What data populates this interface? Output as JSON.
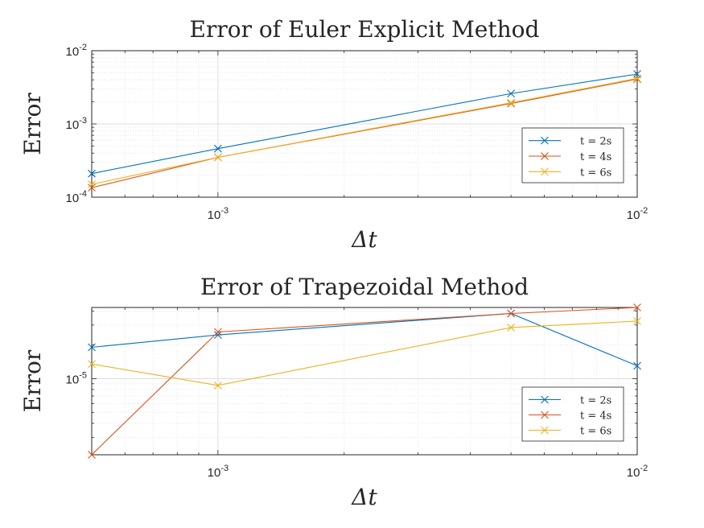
{
  "chart_data": [
    {
      "type": "line",
      "title": "Error of Euler Explicit Method",
      "xlabel": "Δt",
      "ylabel": "Error",
      "xscale": "log",
      "yscale": "log",
      "xlim": [
        0.0005,
        0.01
      ],
      "ylim": [
        0.0001,
        0.01
      ],
      "grid": true,
      "minor_grid": true,
      "legend_position": "lower-right",
      "x": [
        0.0005,
        0.001,
        0.005,
        0.01
      ],
      "x_ticks": [
        {
          "value": 0.001,
          "base": "10",
          "exp": "-3"
        },
        {
          "value": 0.01,
          "base": "10",
          "exp": "-2"
        }
      ],
      "y_ticks": [
        {
          "value": 0.0001,
          "base": "10",
          "exp": "-4"
        },
        {
          "value": 0.001,
          "base": "10",
          "exp": "-3"
        },
        {
          "value": 0.01,
          "base": "10",
          "exp": "-2"
        }
      ],
      "series": [
        {
          "name": "t = 2s",
          "color": "#0072BD",
          "values": [
            0.00021,
            0.00046,
            0.0026,
            0.0048
          ]
        },
        {
          "name": "t = 4s",
          "color": "#D95319",
          "values": [
            0.000135,
            0.00035,
            0.0019,
            0.0041
          ]
        },
        {
          "name": "t = 6s",
          "color": "#EDB120",
          "values": [
            0.00015,
            0.00035,
            0.00195,
            0.0042
          ]
        }
      ]
    },
    {
      "type": "line",
      "title": "Error of Trapezoidal Method",
      "xlabel": "Δt",
      "ylabel": "Error",
      "xscale": "log",
      "yscale": "log",
      "xlim": [
        0.0005,
        0.01
      ],
      "ylim": [
        2.1e-06,
        4.3e-05
      ],
      "grid": true,
      "minor_grid": true,
      "legend_position": "lower-right",
      "x": [
        0.0005,
        0.001,
        0.005,
        0.01
      ],
      "x_ticks": [
        {
          "value": 0.001,
          "base": "10",
          "exp": "-3"
        },
        {
          "value": 0.01,
          "base": "10",
          "exp": "-2"
        }
      ],
      "y_ticks": [
        {
          "value": 1e-05,
          "base": "10",
          "exp": "-5"
        }
      ],
      "series": [
        {
          "name": "t = 2s",
          "color": "#0072BD",
          "values": [
            1.9e-05,
            2.45e-05,
            3.8e-05,
            1.3e-05
          ]
        },
        {
          "name": "t = 4s",
          "color": "#D95319",
          "values": [
            2.1e-06,
            2.6e-05,
            3.8e-05,
            4.3e-05
          ]
        },
        {
          "name": "t = 6s",
          "color": "#EDB120",
          "values": [
            1.35e-05,
            8.7e-06,
            2.85e-05,
            3.25e-05
          ]
        }
      ]
    }
  ]
}
